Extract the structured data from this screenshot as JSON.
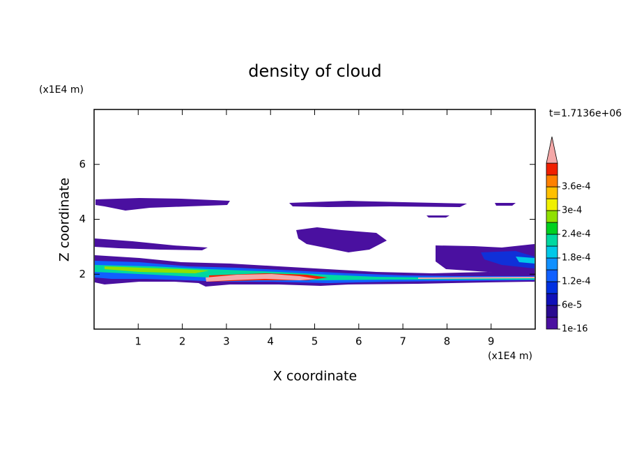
{
  "chart_data": {
    "type": "contour",
    "title": "density of cloud",
    "xlabel": "X coordinate",
    "ylabel": "Z coordinate",
    "x_unit": "(x1E4 m)",
    "y_unit": "(x1E4 m)",
    "time_label": "t=1.7136e+06",
    "xlim": [
      0,
      10
    ],
    "ylim": [
      0,
      8
    ],
    "xticks": [
      1,
      2,
      3,
      4,
      5,
      6,
      7,
      8,
      9
    ],
    "yticks": [
      2,
      4,
      6
    ],
    "colorbar": {
      "levels": [
        1e-16,
        3e-05,
        6e-05,
        9e-05,
        0.00012,
        0.00015,
        0.00018,
        0.00021,
        0.00024,
        0.00027,
        0.0003,
        0.00033,
        0.00036,
        0.00039
      ],
      "colors": [
        "#4a10a0",
        "#2a0a90",
        "#1010b8",
        "#0030e0",
        "#1060ff",
        "#1090ff",
        "#00c8e8",
        "#00d8a0",
        "#00d020",
        "#90e000",
        "#f0f000",
        "#ffc000",
        "#ff8000",
        "#f02000"
      ],
      "overflow_color": "#f4a8a8",
      "ticks": [
        {
          "value": 1e-16,
          "label": "1e-16"
        },
        {
          "value": 6e-05,
          "label": "6e-5"
        },
        {
          "value": 0.00012,
          "label": "1.2e-4"
        },
        {
          "value": 0.00018,
          "label": "1.8e-4"
        },
        {
          "value": 0.00024,
          "label": "2.4e-4"
        },
        {
          "value": 0.0003,
          "label": "3e-4"
        },
        {
          "value": 0.00036,
          "label": "3.6e-4"
        }
      ]
    }
  }
}
